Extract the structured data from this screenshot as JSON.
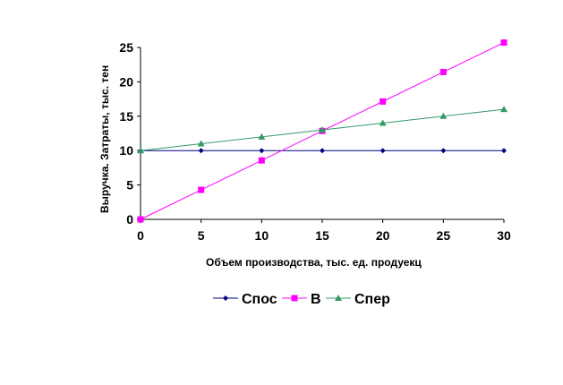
{
  "chart_data": {
    "type": "line",
    "title": "",
    "xlabel": "Объем производства, тыс. ед. продуекц",
    "ylabel": "Выручка. Затраты, тыс. тен",
    "x": [
      0,
      5,
      10,
      15,
      20,
      25,
      30
    ],
    "xlim": [
      0,
      30
    ],
    "ylim": [
      0,
      25
    ],
    "xticks": [
      "0",
      "5",
      "10",
      "15",
      "20",
      "25",
      "30"
    ],
    "yticks": [
      "0",
      "5",
      "10",
      "15",
      "20",
      "25"
    ],
    "grid": false,
    "legend_position": "bottom",
    "series": [
      {
        "name": "Спос",
        "color": "#000080",
        "marker": "diamond",
        "values": [
          10,
          10,
          10,
          10,
          10,
          10,
          10
        ]
      },
      {
        "name": "В",
        "color": "#FF00FF",
        "marker": "square",
        "values": [
          0,
          4.29,
          8.57,
          12.86,
          17.14,
          21.43,
          25.71
        ]
      },
      {
        "name": "Спер",
        "color": "#339966",
        "marker": "triangle",
        "values": [
          10,
          11,
          12,
          13,
          14,
          15,
          16
        ]
      }
    ]
  }
}
